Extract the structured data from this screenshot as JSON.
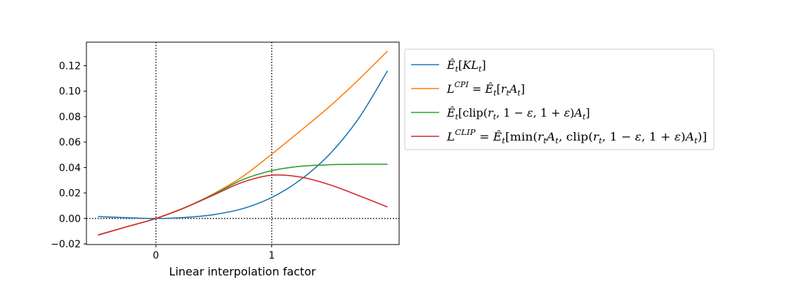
{
  "chart_data": {
    "type": "line",
    "title": "",
    "xlabel": "Linear interpolation factor",
    "ylabel": "",
    "xlim": [
      -0.6,
      2.1
    ],
    "ylim": [
      -0.0205,
      0.1385
    ],
    "x_ticks": [
      0,
      1
    ],
    "x_tick_labels": [
      "0",
      "1"
    ],
    "y_ticks": [
      -0.02,
      0.0,
      0.02,
      0.04,
      0.06,
      0.08,
      0.1,
      0.12
    ],
    "y_tick_labels": [
      "−0.02",
      "0.00",
      "0.02",
      "0.04",
      "0.06",
      "0.08",
      "0.10",
      "0.12"
    ],
    "vertical_reference_lines": [
      0,
      1
    ],
    "horizontal_reference_lines": [
      0
    ],
    "grid": false,
    "legend_position": "outside-right",
    "x": [
      -0.5,
      -0.25,
      0.0,
      0.25,
      0.5,
      0.75,
      1.0,
      1.25,
      1.5,
      1.75,
      2.0
    ],
    "series": [
      {
        "name": "Êₜ[KLₜ]",
        "color": "#1f77b4",
        "values": [
          0.0015,
          0.0006,
          0.0,
          0.0008,
          0.003,
          0.0077,
          0.0165,
          0.0305,
          0.0505,
          0.0785,
          0.116
        ]
      },
      {
        "name": "L^CPI = Êₜ[rₜAₜ]",
        "color": "#ff7f0e",
        "values": [
          -0.013,
          -0.0065,
          0.0,
          0.0085,
          0.0195,
          0.033,
          0.0505,
          0.069,
          0.088,
          0.109,
          0.1315
        ]
      },
      {
        "name": "Êₜ[clip(rₜ, 1 − ε, 1 + ε)Aₜ]",
        "color": "#2ca02c",
        "values": [
          -0.013,
          -0.0065,
          0.0,
          0.0085,
          0.019,
          0.0305,
          0.0375,
          0.041,
          0.0422,
          0.0426,
          0.0426
        ]
      },
      {
        "name": "L^CLIP = Êₜ[min(rₜAₜ, clip(rₜ, 1 − ε, 1 + ε)Aₜ)]",
        "color": "#d62728",
        "values": [
          -0.013,
          -0.0065,
          0.0,
          0.0085,
          0.0185,
          0.0285,
          0.034,
          0.0325,
          0.0265,
          0.018,
          0.009
        ]
      }
    ]
  }
}
